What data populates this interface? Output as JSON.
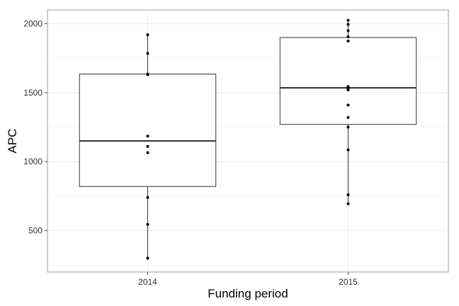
{
  "chart_data": {
    "type": "box",
    "xlabel": "Funding period",
    "ylabel": "APC",
    "categories": [
      "2014",
      "2015"
    ],
    "ylim": [
      200,
      2100
    ],
    "yticks": [
      500,
      1000,
      1500,
      2000
    ],
    "grid": true,
    "boxes": [
      {
        "category": "2014",
        "whisker_low": 300,
        "q1": 820,
        "median": 1150,
        "q3": 1635,
        "whisker_high": 1920,
        "points": [
          1920,
          1785,
          1635,
          1630,
          1185,
          1110,
          1065,
          740,
          545,
          300
        ]
      },
      {
        "category": "2015",
        "whisker_low": 695,
        "q1": 1270,
        "median": 1535,
        "q3": 1900,
        "whisker_high": 2025,
        "points": [
          2025,
          1995,
          1950,
          1905,
          1875,
          1545,
          1530,
          1520,
          1410,
          1320,
          1250,
          1085,
          760,
          695
        ]
      }
    ]
  }
}
